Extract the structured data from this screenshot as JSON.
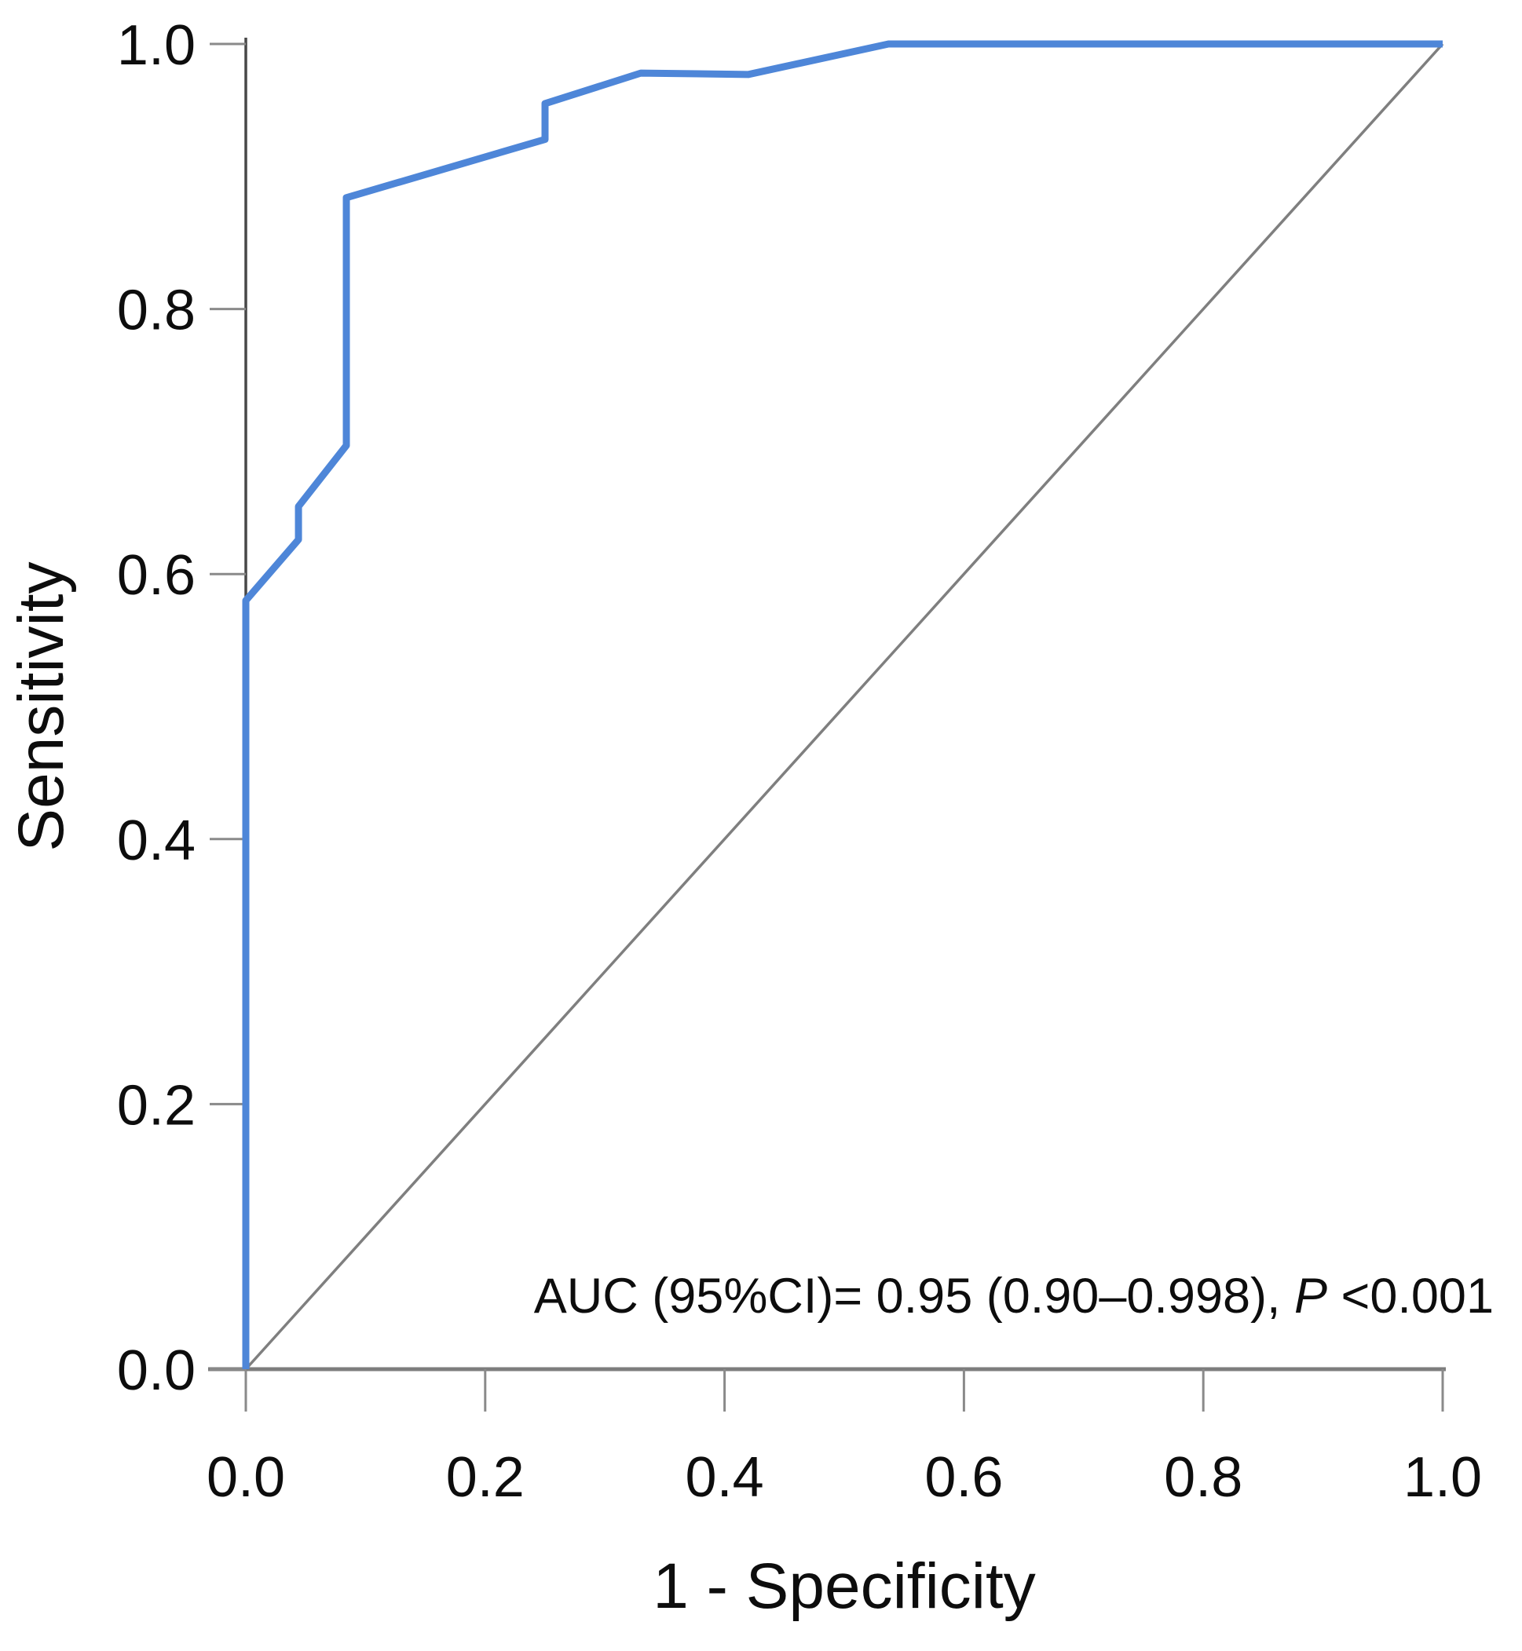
{
  "figure": {
    "y_axis_title": "Sensitivity",
    "x_axis_title": "1 - Specificity",
    "annotation": {
      "prefix": "AUC (95%CI)= 0.95 (0.90–0.998), ",
      "p_symbol": "P",
      "suffix": " <0.001"
    }
  },
  "colors": {
    "curve": "#4e86d8",
    "reference": "#7f7f7f",
    "x_axis": "#7d7d7d",
    "y_axis": "#474747",
    "tick": "#8a8a8a",
    "text": "#0d0d0d",
    "background": "#ffffff"
  },
  "chart_data": {
    "type": "line",
    "title": "",
    "xlabel": "1 - Specificity",
    "ylabel": "Sensitivity",
    "xlim": [
      0,
      1
    ],
    "ylim": [
      0,
      1
    ],
    "grid": false,
    "legend_position": "none",
    "x_ticks": [
      "0.0",
      "0.2",
      "0.4",
      "0.6",
      "0.8",
      "1.0"
    ],
    "y_ticks": [
      "0.0",
      "0.2",
      "0.4",
      "0.6",
      "0.8",
      "1.0"
    ],
    "series": [
      {
        "name": "ROC curve",
        "color": "#4e86d8",
        "stroke_width": 9,
        "points": [
          [
            0.0,
            0.0
          ],
          [
            0.0,
            0.58
          ],
          [
            0.044,
            0.626
          ],
          [
            0.044,
            0.651
          ],
          [
            0.084,
            0.697
          ],
          [
            0.084,
            0.884
          ],
          [
            0.25,
            0.928
          ],
          [
            0.25,
            0.955
          ],
          [
            0.33,
            0.978
          ],
          [
            0.42,
            0.977
          ],
          [
            0.537,
            1.0
          ],
          [
            1.0,
            1.0
          ]
        ]
      },
      {
        "name": "Reference diagonal",
        "color": "#7f7f7f",
        "stroke_width": 3.5,
        "points": [
          [
            0.0,
            0.0
          ],
          [
            1.0,
            1.0
          ]
        ]
      }
    ],
    "stats": {
      "auc": 0.95,
      "ci_low": 0.9,
      "ci_high": 0.998,
      "p_value": "<0.001"
    }
  }
}
